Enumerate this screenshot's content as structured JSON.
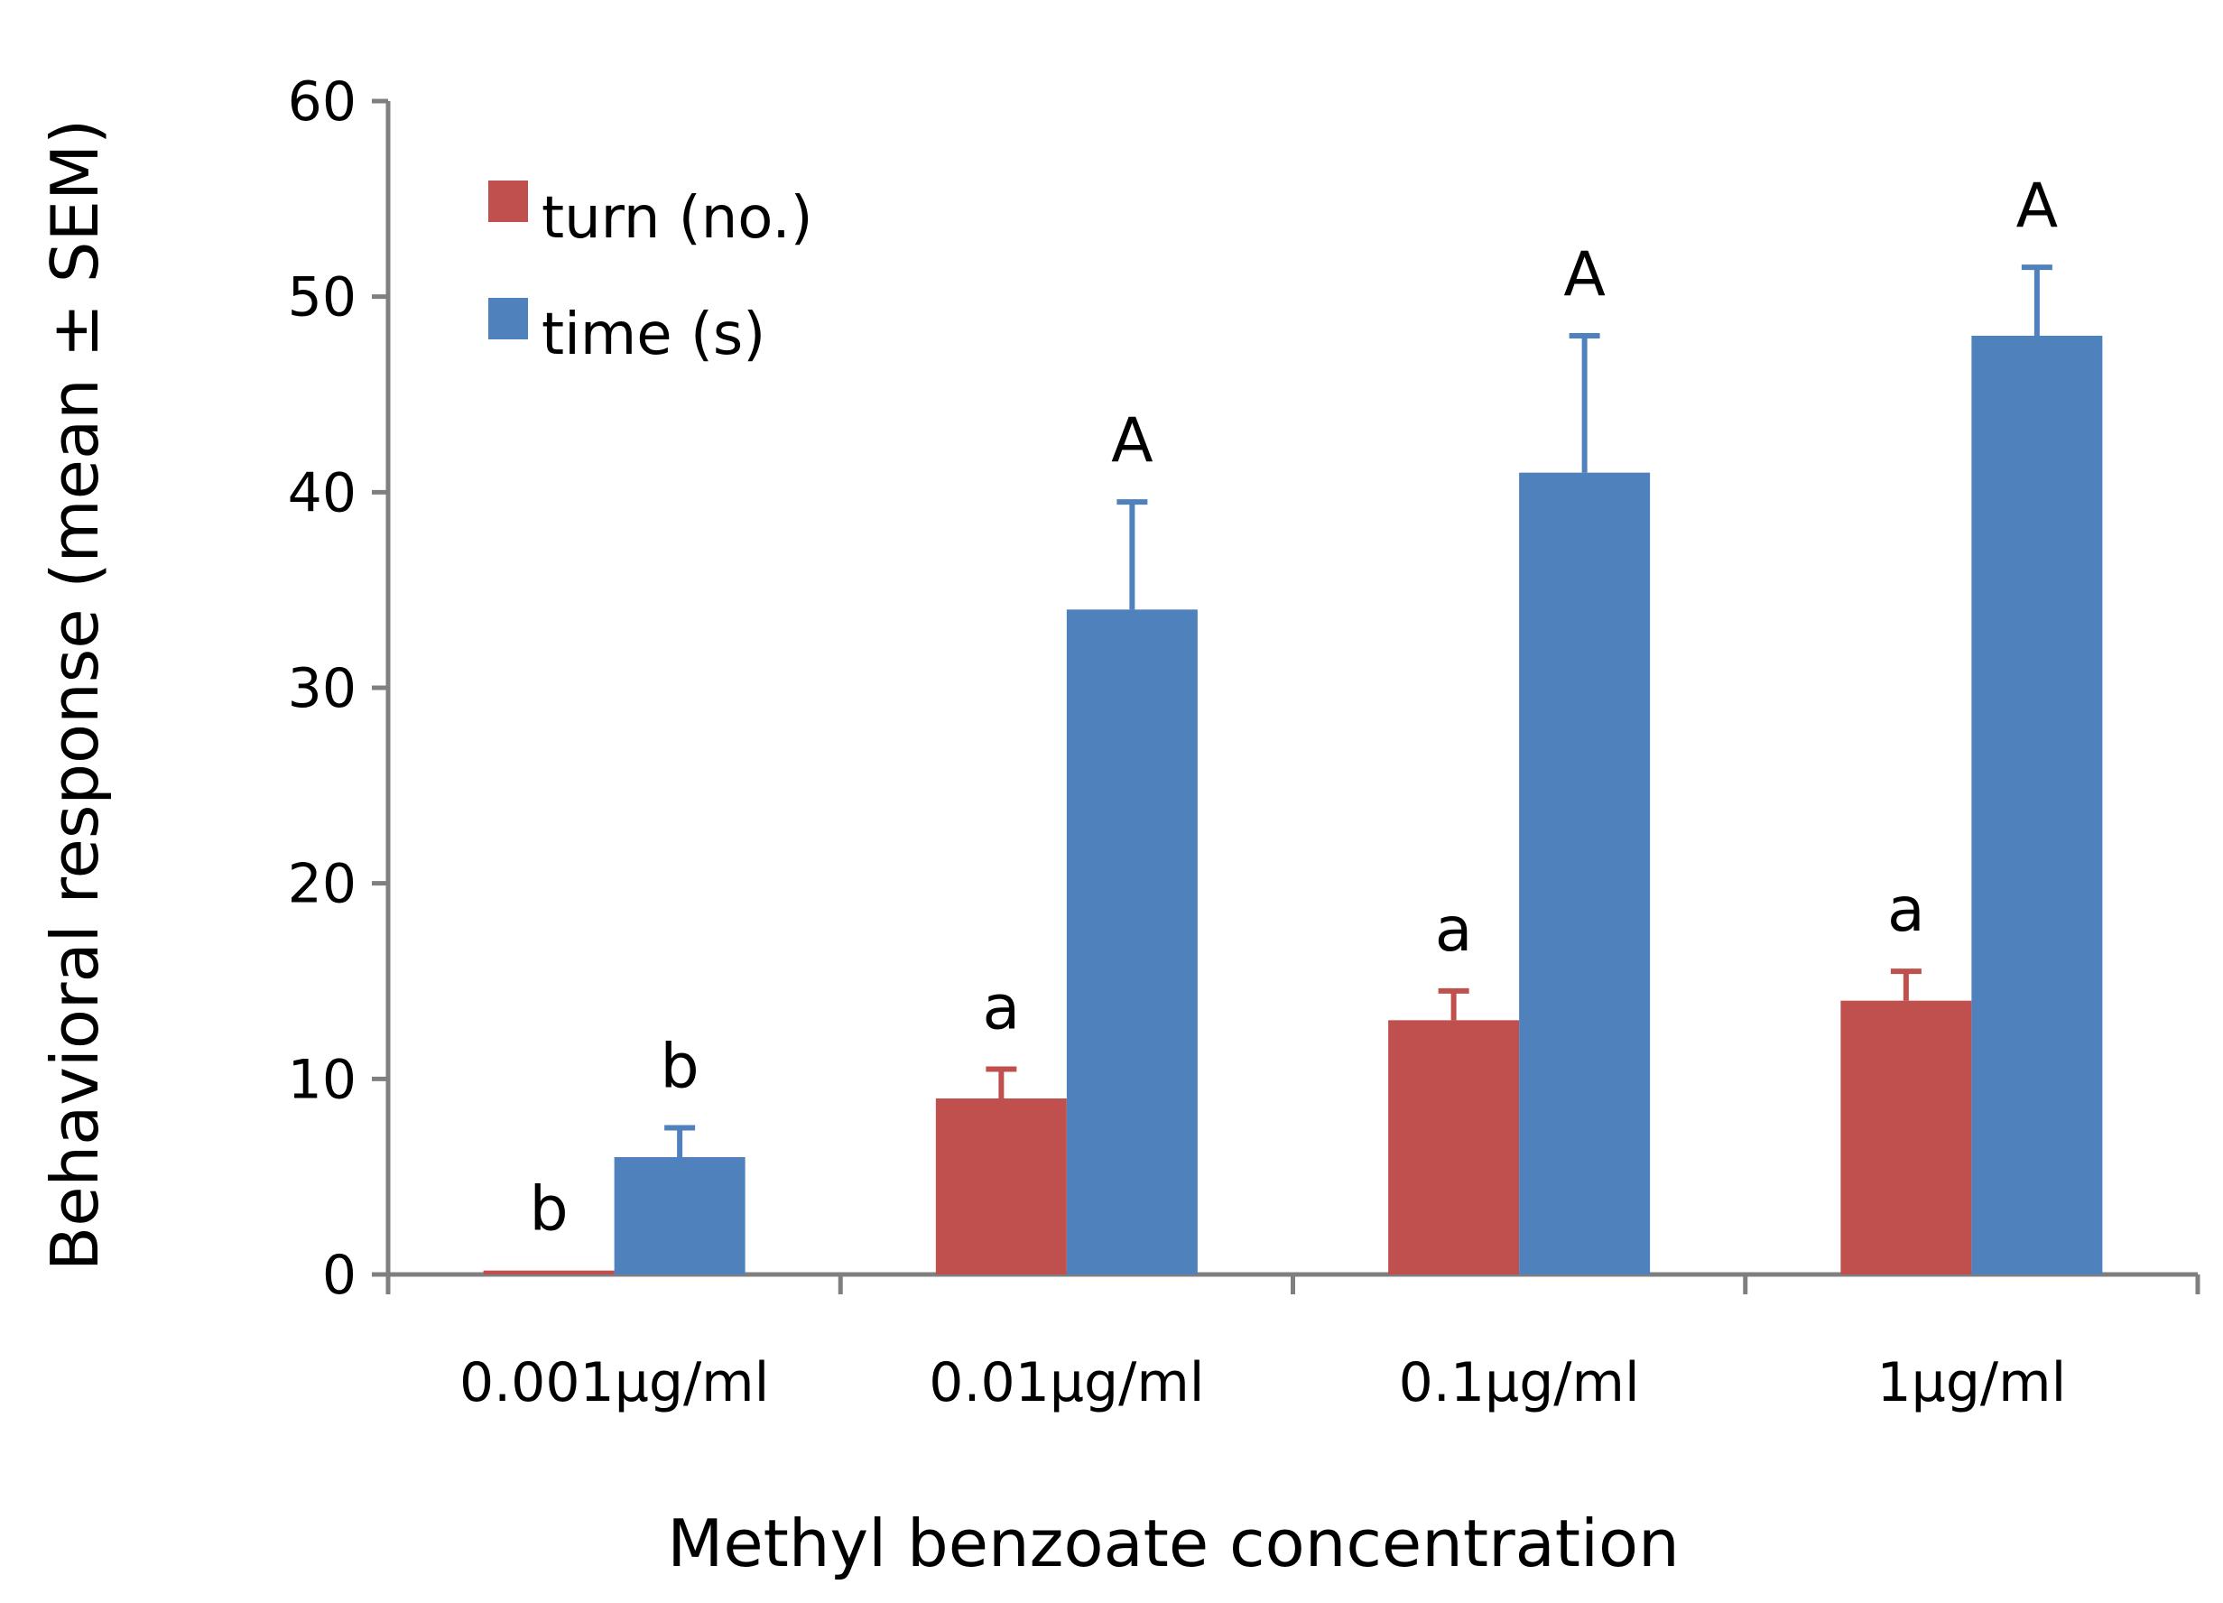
{
  "chart_data": {
    "type": "bar",
    "title": "",
    "xlabel": "Methyl benzoate concentration",
    "ylabel": "Behavioral response (mean ± SEM)",
    "ylim": [
      0,
      60
    ],
    "yticks": [
      0,
      10,
      20,
      30,
      40,
      50,
      60
    ],
    "ytick_labels": [
      "0",
      "10",
      "20",
      "30",
      "40",
      "50",
      "60"
    ],
    "grid": false,
    "legend_position": "top-left",
    "categories": [
      "0.001µg/ml",
      "0.01µg/ml",
      "0.1µg/ml",
      "1µg/ml"
    ],
    "series": [
      {
        "name": "turn (no.)",
        "color": "#c0504d",
        "values": [
          0.2,
          9,
          13,
          14
        ],
        "errors": [
          0,
          1.5,
          1.5,
          1.5
        ],
        "significance": [
          "b",
          "a",
          "a",
          "a"
        ]
      },
      {
        "name": "time (s)",
        "color": "#4f81bd",
        "values": [
          6,
          34,
          41,
          48
        ],
        "errors": [
          1.5,
          5.5,
          7,
          3.5
        ],
        "significance": [
          "b",
          "A",
          "A",
          "A"
        ]
      }
    ]
  }
}
